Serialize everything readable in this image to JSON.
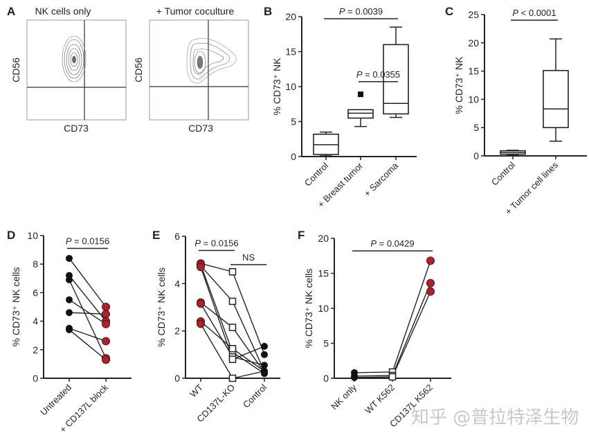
{
  "figure": {
    "panels": [
      "A",
      "B",
      "C",
      "D",
      "E",
      "F"
    ],
    "watermark": "知乎 @普拉特泽生物"
  },
  "flow": [
    {
      "panel": "A",
      "title": "NK cells only",
      "xlabel": "CD73",
      "ylabel": "CD56"
    },
    {
      "panel": "",
      "title": "+ Tumor coculture",
      "xlabel": "CD73",
      "ylabel": "CD56"
    }
  ],
  "chart_data": [
    {
      "panel": "B",
      "type": "box",
      "title": "",
      "ylabel": "% CD73⁺ NK",
      "ylim": [
        0,
        20
      ],
      "yticks": [
        0,
        5,
        10,
        15,
        20
      ],
      "categories": [
        "Control",
        "+ Breast tumor",
        "+ Sarcoma"
      ],
      "boxes": [
        {
          "min": 0.1,
          "q1": 0.3,
          "median": 1.7,
          "q3": 3.2,
          "max": 3.5,
          "outliers": []
        },
        {
          "min": 4.3,
          "q1": 5.5,
          "median": 6.2,
          "q3": 6.7,
          "max": 6.7,
          "outliers": [
            8.9
          ]
        },
        {
          "min": 5.6,
          "q1": 6.1,
          "median": 7.6,
          "q3": 16.0,
          "max": 18.5,
          "outliers": []
        }
      ],
      "comparisons": [
        {
          "from": 1,
          "to": 2,
          "label": "P = 0.0355",
          "y": 10.7
        },
        {
          "from": 0,
          "to": 2,
          "label": "P = 0.0039",
          "y": 19.7
        }
      ]
    },
    {
      "panel": "C",
      "type": "box",
      "title": "",
      "ylabel": "% CD73⁺ NK",
      "ylim": [
        0,
        25
      ],
      "yticks": [
        0,
        5,
        10,
        15,
        20,
        25
      ],
      "categories": [
        "Control",
        "+ Tumor cell lines"
      ],
      "boxes": [
        {
          "min": 0.1,
          "q1": 0.3,
          "median": 0.6,
          "q3": 0.9,
          "max": 1.0,
          "outliers": []
        },
        {
          "min": 2.6,
          "q1": 5.0,
          "median": 8.3,
          "q3": 15.1,
          "max": 20.7,
          "outliers": []
        }
      ],
      "comparisons": [
        {
          "from": 0,
          "to": 1,
          "label": "P < 0.0001",
          "y": 24.0
        }
      ]
    },
    {
      "panel": "D",
      "type": "paired",
      "title": "",
      "ylabel": "% CD73⁺ NK cells",
      "ylim": [
        0,
        10
      ],
      "yticks": [
        0,
        2,
        4,
        6,
        8,
        10
      ],
      "categories": [
        "Untreated",
        "+ CD137L block"
      ],
      "series": [
        {
          "values": [
            8.4,
            5.0
          ]
        },
        {
          "values": [
            7.2,
            4.0
          ]
        },
        {
          "values": [
            6.9,
            1.4
          ]
        },
        {
          "values": [
            5.5,
            3.8
          ]
        },
        {
          "values": [
            4.6,
            4.5
          ]
        },
        {
          "values": [
            3.5,
            2.6
          ]
        },
        {
          "values": [
            3.4,
            1.3
          ]
        }
      ],
      "markers": [
        "circle-black",
        "circle-red"
      ],
      "comparisons": [
        {
          "from": 0,
          "to": 1,
          "label": "P = 0.0156",
          "y": 9.1
        }
      ]
    },
    {
      "panel": "E",
      "type": "paired",
      "title": "",
      "ylabel": "% CD73⁺ NK cells",
      "ylim": [
        0,
        6
      ],
      "yticks": [
        0,
        2,
        4,
        6
      ],
      "categories": [
        "WT",
        "CD137L-KO",
        "Control"
      ],
      "series": [
        {
          "values": [
            4.85,
            4.5,
            1.0
          ]
        },
        {
          "values": [
            4.75,
            3.25,
            0.3
          ]
        },
        {
          "values": [
            4.8,
            1.1,
            0.2
          ]
        },
        {
          "values": [
            3.2,
            2.15,
            0.25
          ]
        },
        {
          "values": [
            3.15,
            0.9,
            0.55
          ]
        },
        {
          "values": [
            2.4,
            1.25,
            0.3
          ]
        },
        {
          "values": [
            2.3,
            0.0,
            0.3
          ]
        },
        {
          "values": [
            4.7,
            0.8,
            1.35
          ]
        }
      ],
      "markers": [
        "circle-red",
        "square-open",
        "circle-black"
      ],
      "comparisons": [
        {
          "from": 0,
          "to": 1,
          "label": "P = 0.0156",
          "y": 5.4
        },
        {
          "from": 1,
          "to": 2,
          "label": "NS",
          "y": 4.8
        }
      ]
    },
    {
      "panel": "F",
      "type": "paired",
      "title": "",
      "ylabel": "% CD73⁺ NK cells",
      "ylim": [
        0,
        20
      ],
      "yticks": [
        0,
        5,
        10,
        15,
        20
      ],
      "categories": [
        "NK only",
        "WT K562",
        "CD137L K562"
      ],
      "series": [
        {
          "values": [
            0.8,
            0.9,
            16.8
          ]
        },
        {
          "values": [
            0.3,
            0.4,
            13.6
          ]
        },
        {
          "values": [
            0.1,
            0.2,
            12.4
          ]
        }
      ],
      "markers": [
        "circle-black",
        "square-open",
        "circle-red"
      ],
      "comparisons": [
        {
          "from": 0,
          "to": 2,
          "label": "P = 0.0429",
          "y": 18.2
        }
      ]
    }
  ]
}
